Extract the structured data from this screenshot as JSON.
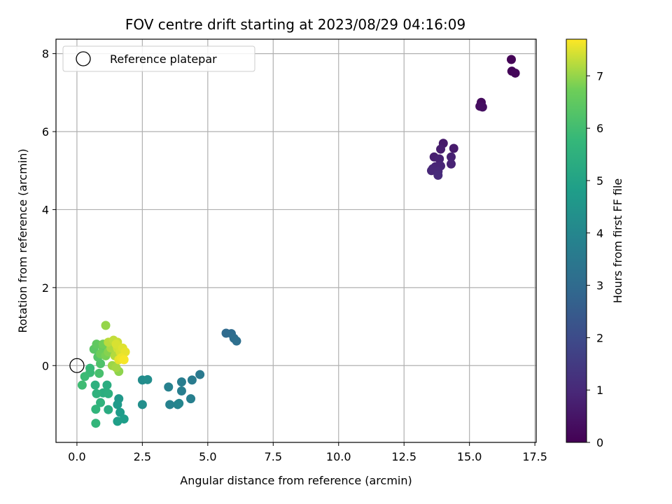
{
  "chart_data": {
    "type": "scatter",
    "title": "FOV centre drift starting at 2023/08/29 04:16:09",
    "xlabel": "Angular distance from reference (arcmin)",
    "ylabel": "Rotation from reference (arcmin)",
    "xlim": [
      -0.8,
      17.55
    ],
    "ylim": [
      -1.97,
      8.37
    ],
    "xticks": [
      0.0,
      2.5,
      5.0,
      7.5,
      10.0,
      12.5,
      15.0,
      17.5
    ],
    "xtick_labels": [
      "0.0",
      "2.5",
      "5.0",
      "7.5",
      "10.0",
      "12.5",
      "15.0",
      "17.5"
    ],
    "yticks": [
      0,
      2,
      4,
      6,
      8
    ],
    "ytick_labels": [
      "0",
      "2",
      "4",
      "6",
      "8"
    ],
    "grid": true,
    "legend": {
      "position": "top-left",
      "entries": [
        "Reference platepar"
      ]
    },
    "reference_point": {
      "x": 0.0,
      "y": 0.0
    },
    "colorbar": {
      "label": "Hours from first FF file",
      "colormap": "viridis",
      "range": [
        0,
        7.7
      ],
      "ticks": [
        0,
        1,
        2,
        3,
        4,
        5,
        6,
        7
      ],
      "tick_labels": [
        "0",
        "1",
        "2",
        "3",
        "4",
        "5",
        "6",
        "7"
      ]
    },
    "points": [
      {
        "x": 16.6,
        "y": 7.85,
        "h": 0.05
      },
      {
        "x": 16.62,
        "y": 7.55,
        "h": 0.1
      },
      {
        "x": 16.75,
        "y": 7.5,
        "h": 0.15
      },
      {
        "x": 15.45,
        "y": 6.75,
        "h": 0.25
      },
      {
        "x": 15.4,
        "y": 6.65,
        "h": 0.3
      },
      {
        "x": 15.5,
        "y": 6.63,
        "h": 0.35
      },
      {
        "x": 14.0,
        "y": 5.7,
        "h": 0.6
      },
      {
        "x": 14.4,
        "y": 5.57,
        "h": 0.65
      },
      {
        "x": 13.9,
        "y": 5.55,
        "h": 0.7
      },
      {
        "x": 13.65,
        "y": 5.35,
        "h": 0.75
      },
      {
        "x": 14.3,
        "y": 5.35,
        "h": 0.8
      },
      {
        "x": 13.85,
        "y": 5.3,
        "h": 0.82
      },
      {
        "x": 14.3,
        "y": 5.17,
        "h": 0.85
      },
      {
        "x": 13.7,
        "y": 5.1,
        "h": 0.9
      },
      {
        "x": 13.9,
        "y": 5.12,
        "h": 0.92
      },
      {
        "x": 13.6,
        "y": 5.05,
        "h": 0.95
      },
      {
        "x": 13.55,
        "y": 5.0,
        "h": 0.97
      },
      {
        "x": 13.8,
        "y": 4.98,
        "h": 1.0
      },
      {
        "x": 13.72,
        "y": 5.05,
        "h": 0.88
      },
      {
        "x": 13.8,
        "y": 4.88,
        "h": 1.05
      },
      {
        "x": 5.7,
        "y": 0.83,
        "h": 3.0
      },
      {
        "x": 5.9,
        "y": 0.82,
        "h": 3.05
      },
      {
        "x": 6.0,
        "y": 0.7,
        "h": 3.1
      },
      {
        "x": 6.1,
        "y": 0.63,
        "h": 3.15
      },
      {
        "x": 4.7,
        "y": -0.23,
        "h": 3.5
      },
      {
        "x": 4.4,
        "y": -0.37,
        "h": 3.6
      },
      {
        "x": 4.0,
        "y": -0.42,
        "h": 3.65
      },
      {
        "x": 4.0,
        "y": -0.65,
        "h": 3.7
      },
      {
        "x": 4.35,
        "y": -0.85,
        "h": 3.75
      },
      {
        "x": 3.5,
        "y": -0.55,
        "h": 3.8
      },
      {
        "x": 3.55,
        "y": -1.0,
        "h": 3.85
      },
      {
        "x": 3.85,
        "y": -1.0,
        "h": 3.9
      },
      {
        "x": 3.9,
        "y": -0.97,
        "h": 3.95
      },
      {
        "x": 2.5,
        "y": -0.37,
        "h": 4.2
      },
      {
        "x": 2.7,
        "y": -0.36,
        "h": 4.25
      },
      {
        "x": 2.5,
        "y": -1.0,
        "h": 4.3
      },
      {
        "x": 1.6,
        "y": -0.85,
        "h": 4.6
      },
      {
        "x": 1.55,
        "y": -1.0,
        "h": 4.7
      },
      {
        "x": 1.65,
        "y": -1.2,
        "h": 4.75
      },
      {
        "x": 1.8,
        "y": -1.37,
        "h": 4.8
      },
      {
        "x": 1.55,
        "y": -1.43,
        "h": 4.85
      },
      {
        "x": 1.2,
        "y": -1.13,
        "h": 5.3
      },
      {
        "x": 1.15,
        "y": -0.5,
        "h": 5.35
      },
      {
        "x": 1.0,
        "y": -0.7,
        "h": 5.4
      },
      {
        "x": 1.2,
        "y": -0.72,
        "h": 5.45
      },
      {
        "x": 0.7,
        "y": -0.5,
        "h": 5.5
      },
      {
        "x": 0.75,
        "y": -0.72,
        "h": 5.55
      },
      {
        "x": 0.9,
        "y": -0.95,
        "h": 5.6
      },
      {
        "x": 0.72,
        "y": -1.12,
        "h": 5.65
      },
      {
        "x": 0.72,
        "y": -1.48,
        "h": 5.7
      },
      {
        "x": 0.5,
        "y": -0.07,
        "h": 5.8
      },
      {
        "x": 0.5,
        "y": -0.18,
        "h": 5.85
      },
      {
        "x": 0.3,
        "y": -0.28,
        "h": 5.9
      },
      {
        "x": 0.2,
        "y": -0.5,
        "h": 5.95
      },
      {
        "x": 0.85,
        "y": -0.2,
        "h": 6.1
      },
      {
        "x": 0.9,
        "y": 0.05,
        "h": 6.2
      },
      {
        "x": 0.8,
        "y": 0.22,
        "h": 6.3
      },
      {
        "x": 0.65,
        "y": 0.42,
        "h": 6.4
      },
      {
        "x": 0.75,
        "y": 0.55,
        "h": 6.5
      },
      {
        "x": 1.0,
        "y": 0.45,
        "h": 6.6
      },
      {
        "x": 0.9,
        "y": 0.3,
        "h": 6.7
      },
      {
        "x": 1.1,
        "y": 0.25,
        "h": 6.8
      },
      {
        "x": 1.2,
        "y": 0.35,
        "h": 6.9
      },
      {
        "x": 1.1,
        "y": 1.03,
        "h": 7.0
      },
      {
        "x": 1.0,
        "y": 0.55,
        "h": 6.75
      },
      {
        "x": 1.35,
        "y": 0.0,
        "h": 7.05
      },
      {
        "x": 1.5,
        "y": -0.05,
        "h": 7.1
      },
      {
        "x": 1.6,
        "y": -0.15,
        "h": 6.95
      },
      {
        "x": 1.3,
        "y": 0.45,
        "h": 7.15
      },
      {
        "x": 1.45,
        "y": 0.25,
        "h": 7.2
      },
      {
        "x": 1.2,
        "y": 0.6,
        "h": 7.25
      },
      {
        "x": 1.4,
        "y": 0.65,
        "h": 7.3
      },
      {
        "x": 1.55,
        "y": 0.6,
        "h": 7.35
      },
      {
        "x": 1.55,
        "y": 0.45,
        "h": 7.4
      },
      {
        "x": 1.65,
        "y": 0.35,
        "h": 7.45
      },
      {
        "x": 1.75,
        "y": 0.45,
        "h": 7.5
      },
      {
        "x": 1.85,
        "y": 0.35,
        "h": 7.55
      },
      {
        "x": 1.7,
        "y": 0.2,
        "h": 7.6
      },
      {
        "x": 1.8,
        "y": 0.15,
        "h": 7.65
      },
      {
        "x": 1.6,
        "y": 0.15,
        "h": 7.55
      },
      {
        "x": 1.5,
        "y": 0.55,
        "h": 7.45
      }
    ]
  }
}
